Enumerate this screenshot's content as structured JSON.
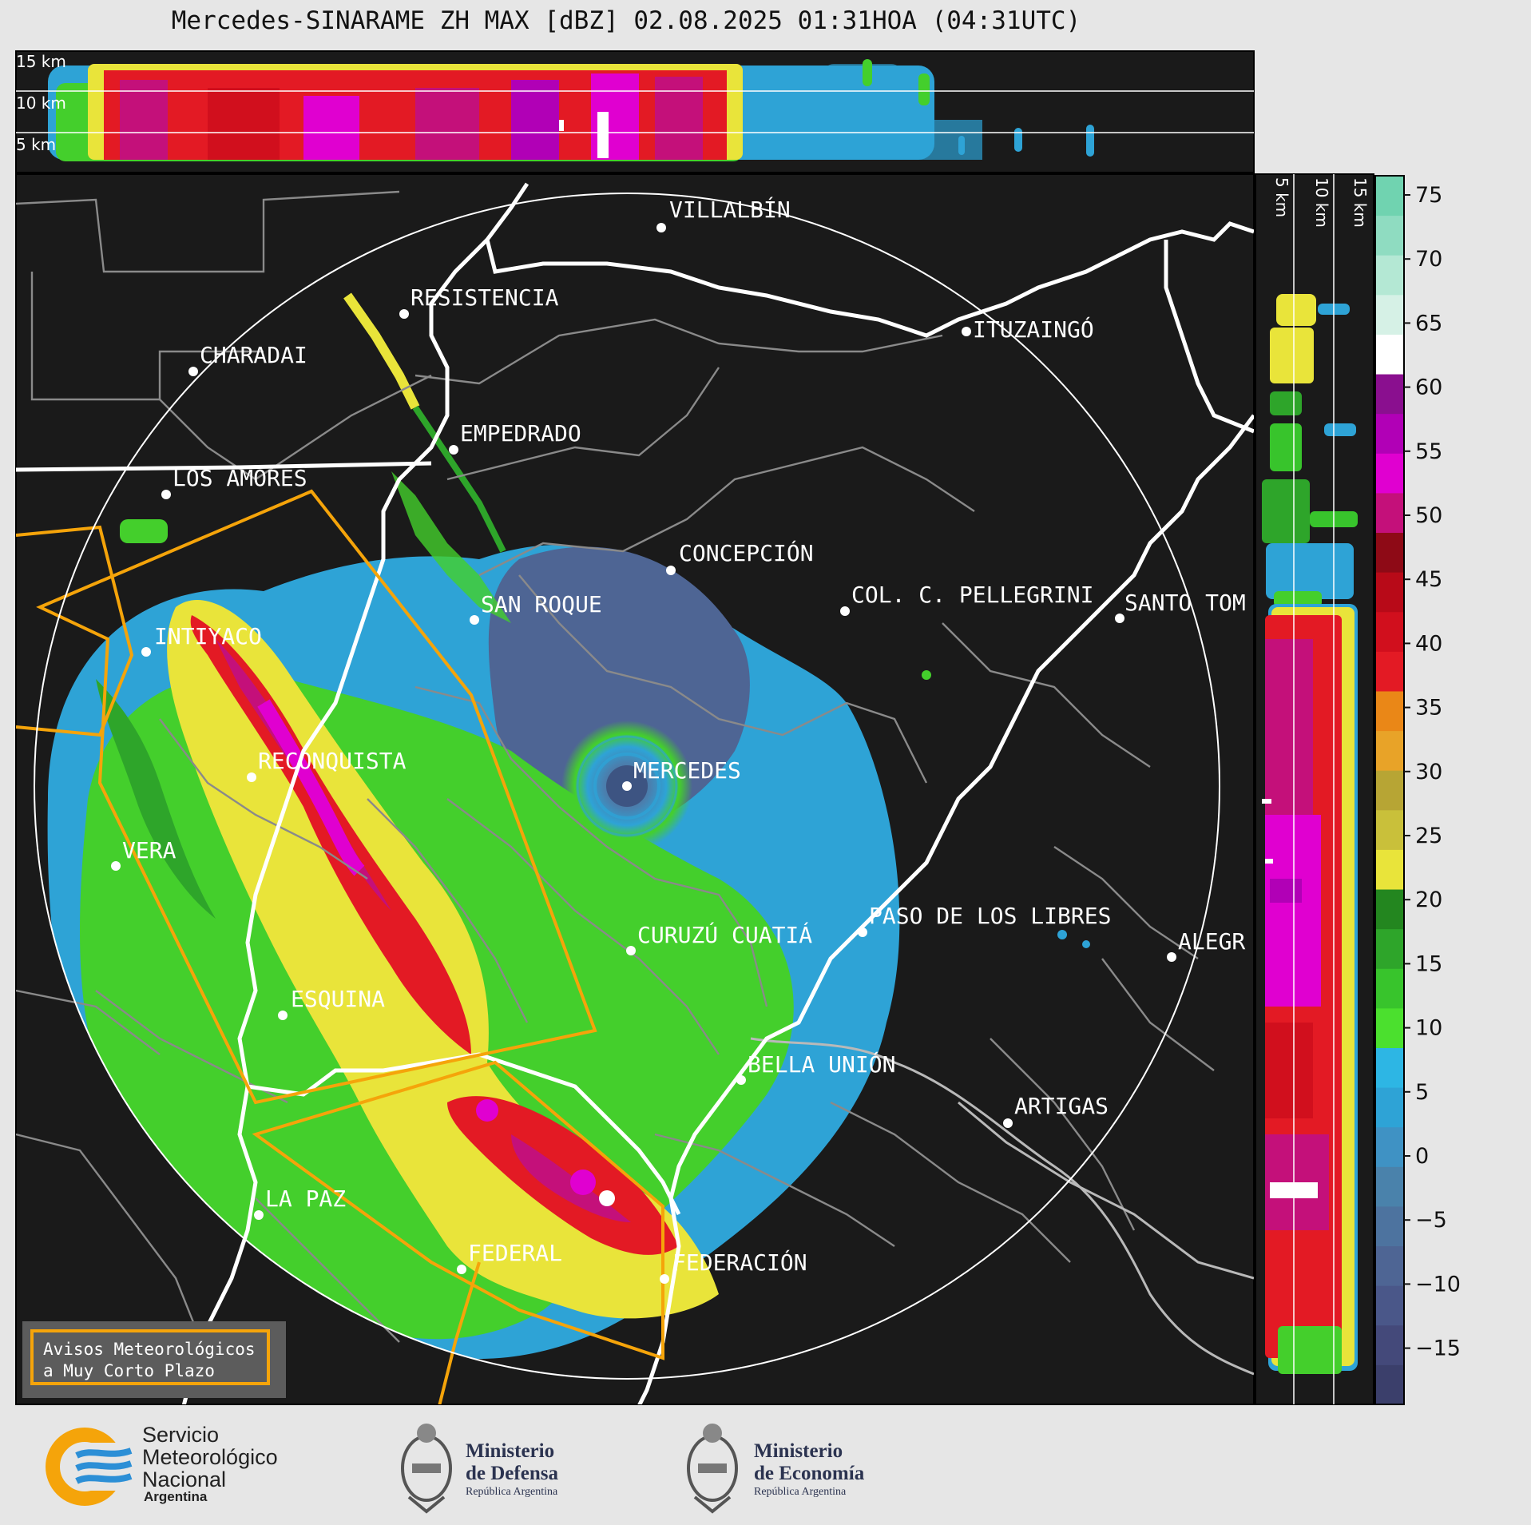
{
  "title": "Mercedes-SINARAME ZH MAX [dBZ] 02.08.2025 01:31HOA (04:31UTC)",
  "top_panel": {
    "heights": [
      "15 km",
      "10 km",
      "5 km"
    ]
  },
  "side_panel": {
    "heights": [
      "5 km",
      "10 km",
      "15 km"
    ]
  },
  "colorbar": {
    "ticks": [
      "75",
      "70",
      "65",
      "60",
      "55",
      "50",
      "45",
      "40",
      "35",
      "30",
      "25",
      "20",
      "15",
      "10",
      "5",
      "0",
      "−5",
      "−10",
      "−15"
    ],
    "colors": [
      "#3b3f6b",
      "#44497a",
      "#4a5789",
      "#4e6594",
      "#4d739f",
      "#4a82ab",
      "#3f92c4",
      "#2ea3d6",
      "#2db6e4",
      "#4be02e",
      "#38c42c",
      "#2ea52a",
      "#23861f",
      "#e9e43a",
      "#c9c03a",
      "#b7a534",
      "#e8a328",
      "#ea8717",
      "#e31a24",
      "#d10f1d",
      "#b80a18",
      "#8e0a16",
      "#c4107a",
      "#e000d0",
      "#b100b6",
      "#8a0f8f",
      "#ffffff",
      "#d6f1e6",
      "#b4e8d4",
      "#8fdcc1",
      "#70d3b0"
    ]
  },
  "cities": [
    {
      "name": "VILLALBÍN"
    },
    {
      "name": "RESISTENCIA"
    },
    {
      "name": "CHARADAI"
    },
    {
      "name": "ITUZAINGÓ"
    },
    {
      "name": "EMPEDRADO"
    },
    {
      "name": "LOS AMORES"
    },
    {
      "name": "CONCEPCIÓN"
    },
    {
      "name": "COL. C. PELLEGRINI"
    },
    {
      "name": "SANTO TOM"
    },
    {
      "name": "SAN ROQUE"
    },
    {
      "name": "INTIYACO"
    },
    {
      "name": "MERCEDES"
    },
    {
      "name": "RECONQUISTA"
    },
    {
      "name": "VERA"
    },
    {
      "name": "PASO DE LOS LIBRES"
    },
    {
      "name": "CURUZÚ CUATIÁ"
    },
    {
      "name": "ALEGR"
    },
    {
      "name": "ESQUINA"
    },
    {
      "name": "BELLA UNIÓN"
    },
    {
      "name": "ARTIGAS"
    },
    {
      "name": "LA PAZ"
    },
    {
      "name": "FEDERAL"
    },
    {
      "name": "FEDERACIÓN"
    }
  ],
  "warning_box": {
    "line1": "Avisos Meteorológicos",
    "line2": "a Muy Corto Plazo"
  },
  "logos": {
    "smn": {
      "line1": "Servicio",
      "line2": "Meteorológico",
      "line3": "Nacional",
      "sub": "Argentina"
    },
    "defensa": {
      "line1": "Ministerio",
      "line2": "de Defensa",
      "sub": "República Argentina"
    },
    "economia": {
      "line1": "Ministerio",
      "line2": "de Economía",
      "sub": "República Argentina"
    }
  }
}
